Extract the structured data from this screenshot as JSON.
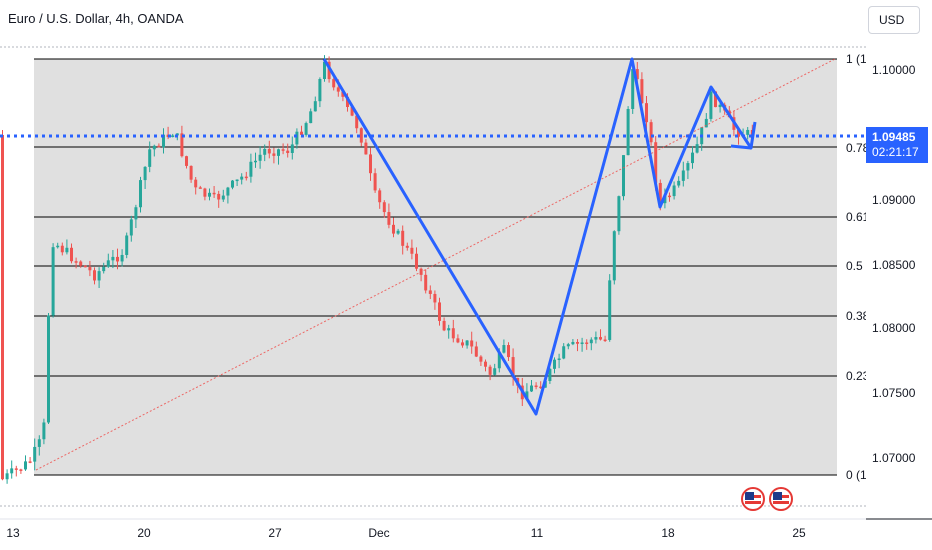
{
  "header": {
    "title": "Euro / U.S. Dollar, 4h, OANDA",
    "currency_button": "USD"
  },
  "price_axis": {
    "labels": [
      "1.10000",
      "1.09500",
      "1.09000",
      "1.08500",
      "1.08000",
      "1.07500",
      "1.07000"
    ]
  },
  "time_axis": {
    "labels": [
      "13",
      "20",
      "27",
      "Dec",
      "11",
      "18",
      "25"
    ]
  },
  "fib_levels": {
    "labels": [
      "1 (1",
      "0.78",
      "0.61",
      "0.5",
      "0.38",
      "0.23",
      "0 (1"
    ]
  },
  "current_price": {
    "value": "1.09485",
    "countdown": "02:21:17"
  },
  "events": {
    "icons": [
      "us-flag-icon",
      "us-flag-icon"
    ]
  },
  "colors": {
    "bullish": "#26a69a",
    "bearish": "#ef5350",
    "drawing": "#2962ff",
    "fib_fill": "#e0e0e0",
    "trend": "#ef5350"
  }
}
